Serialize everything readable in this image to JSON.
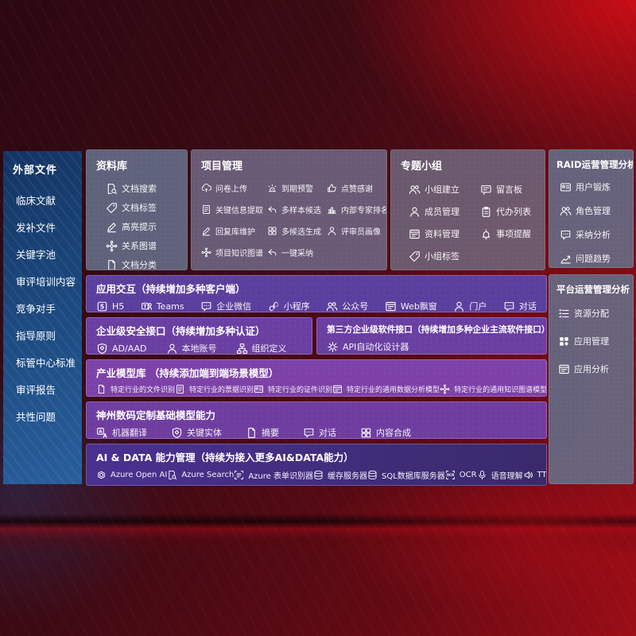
{
  "theme": {
    "background_red": "#9c0d16",
    "accent_bright_red": "#ce0d15",
    "sidebar_blue": "#1e4c82",
    "panel_slate": "#656e8a",
    "row_purple": "#6a3fa2",
    "row_magenta": "#7d41a8",
    "row_indigo": "#43307f",
    "text": "#ffffff"
  },
  "sidebar": {
    "title": "外部文件",
    "items": [
      "临床文献",
      "发补文件",
      "关键字池",
      "审评培训内容",
      "竞争对手",
      "指导原则",
      "标管中心标准",
      "审评报告",
      "共性问题"
    ]
  },
  "library": {
    "title": "资料库",
    "items": [
      {
        "icon": "docsearch",
        "label": "文档搜索"
      },
      {
        "icon": "tag",
        "label": "文档标签"
      },
      {
        "icon": "pen",
        "label": "高亮提示"
      },
      {
        "icon": "graph",
        "label": "关系图谱"
      },
      {
        "icon": "doc",
        "label": "文档分类"
      }
    ]
  },
  "project": {
    "title": "项目管理",
    "items": [
      {
        "icon": "cloudup",
        "label": "问卷上传"
      },
      {
        "icon": "alarm",
        "label": "到期预警"
      },
      {
        "icon": "thumb",
        "label": "点赞感谢"
      },
      {
        "icon": "doclines",
        "label": "关键信息提取"
      },
      {
        "icon": "reply",
        "label": "多样本候选"
      },
      {
        "icon": "chart",
        "label": "内部专家排名"
      },
      {
        "icon": "pen",
        "label": "回复库维护"
      },
      {
        "icon": "grid",
        "label": "多候选生成"
      },
      {
        "icon": "person",
        "label": "评审员画像"
      },
      {
        "icon": "graph",
        "label": "项目知识图谱"
      },
      {
        "icon": "reply",
        "label": "一键采纳"
      }
    ]
  },
  "group": {
    "title": "专题小组",
    "col1": [
      {
        "icon": "people",
        "label": "小组建立"
      },
      {
        "icon": "person",
        "label": "成员管理"
      },
      {
        "icon": "window",
        "label": "资料管理"
      },
      {
        "icon": "tag",
        "label": "小组标签"
      }
    ],
    "col2": [
      {
        "icon": "bbs",
        "label": "留言板"
      },
      {
        "icon": "clipboard",
        "label": "代办列表"
      },
      {
        "icon": "bell",
        "label": "事项提醒"
      }
    ]
  },
  "raid": {
    "title": "RAID运营管理分析",
    "items": [
      {
        "icon": "idcard",
        "label": "用户锻炼"
      },
      {
        "icon": "people",
        "label": "角色管理"
      },
      {
        "icon": "chat",
        "label": "采纳分析"
      },
      {
        "icon": "trend",
        "label": "问题趋势"
      }
    ]
  },
  "platform": {
    "title": "平台运营管理分析",
    "items": [
      {
        "icon": "list",
        "label": "资源分配"
      },
      {
        "icon": "apps",
        "label": "应用管理"
      },
      {
        "icon": "window",
        "label": "应用分析"
      }
    ]
  },
  "interaction": {
    "title": "应用交互（持续增加多种客户端）",
    "items": [
      {
        "icon": "h5",
        "label": "H5"
      },
      {
        "icon": "teams",
        "label": "Teams"
      },
      {
        "icon": "chat",
        "label": "企业微信"
      },
      {
        "icon": "mini",
        "label": "小程序"
      },
      {
        "icon": "people",
        "label": "公众号"
      },
      {
        "icon": "window",
        "label": "Web飘窗"
      },
      {
        "icon": "person",
        "label": "门户"
      },
      {
        "icon": "chat",
        "label": "对话"
      }
    ]
  },
  "security": {
    "title": "企业级安全接口（持续增加多种认证）",
    "items": [
      {
        "icon": "shield",
        "label": "AD/AAD"
      },
      {
        "icon": "person",
        "label": "本地账号"
      },
      {
        "icon": "org",
        "label": "组织定义"
      }
    ]
  },
  "thirdparty": {
    "title": "第三方企业级软件接口（持续增加多种企业主流软件接口）",
    "items": [
      {
        "icon": "gear",
        "label": "API自动化设计器"
      }
    ]
  },
  "models": {
    "title": "产业模型库 （持续添加端到端场景模型）",
    "items": [
      {
        "icon": "doc",
        "label": "特定行业的文件识别"
      },
      {
        "icon": "doclines",
        "label": "特定行业的票据识别"
      },
      {
        "icon": "idcard",
        "label": "特定行业的证件识别"
      },
      {
        "icon": "window",
        "label": "特定行业的通用数据分析模型"
      },
      {
        "icon": "graph",
        "label": "特定行业的通用知识图谱模型"
      }
    ]
  },
  "base_models": {
    "title": "神州数码定制基础模型能力",
    "items": [
      {
        "icon": "translate",
        "label": "机器翻译"
      },
      {
        "icon": "shield",
        "label": "关键实体"
      },
      {
        "icon": "doc",
        "label": "摘要"
      },
      {
        "icon": "chat",
        "label": "对话"
      },
      {
        "icon": "grid",
        "label": "内容合成"
      }
    ]
  },
  "ai_data": {
    "title": "AI & DATA 能力管理（持续为接入更多AI&DATA能力）",
    "items": [
      {
        "icon": "openai",
        "label": "Azure Open AI"
      },
      {
        "icon": "docsearch",
        "label": "Azure Search"
      },
      {
        "icon": "form",
        "label": "Azure 表单识别器"
      },
      {
        "icon": "db",
        "label": "缓存服务器"
      },
      {
        "icon": "db",
        "label": "SQL数据库服务器"
      },
      {
        "icon": "ocr",
        "label": "OCR"
      },
      {
        "icon": "mic",
        "label": "语音理解"
      },
      {
        "icon": "speaker",
        "label": "TTS"
      }
    ]
  }
}
